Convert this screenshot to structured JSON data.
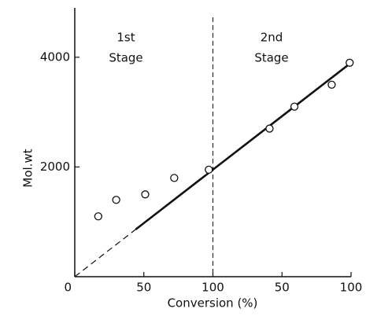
{
  "chart_data": {
    "type": "scatter",
    "x_label": "Conversion (%)",
    "y_label": "Mol.wt",
    "annotations": [
      [
        "1st",
        "Stage"
      ],
      [
        "2nd",
        "Stage"
      ]
    ],
    "xlim": [
      0,
      200
    ],
    "ylim": [
      0,
      4900
    ],
    "xticks": [
      0,
      50,
      100,
      {
        "value": 150,
        "label": "50"
      },
      {
        "value": 200,
        "label": "100"
      }
    ],
    "yticks": [
      2000,
      4000
    ],
    "series": [
      {
        "color": "#111111",
        "x": [
          17,
          30,
          51,
          72,
          97,
          141,
          159,
          186,
          199
        ],
        "values": [
          1100,
          1400,
          1500,
          1800,
          1950,
          2700,
          3100,
          3500,
          3900
        ]
      }
    ],
    "lines": [
      {
        "style": "solid",
        "x": [
          44,
          199
        ],
        "values": [
          860,
          3880
        ]
      },
      {
        "style": "dashed",
        "x": [
          0,
          44
        ],
        "values": [
          0,
          860
        ]
      }
    ],
    "vline": 100
  }
}
